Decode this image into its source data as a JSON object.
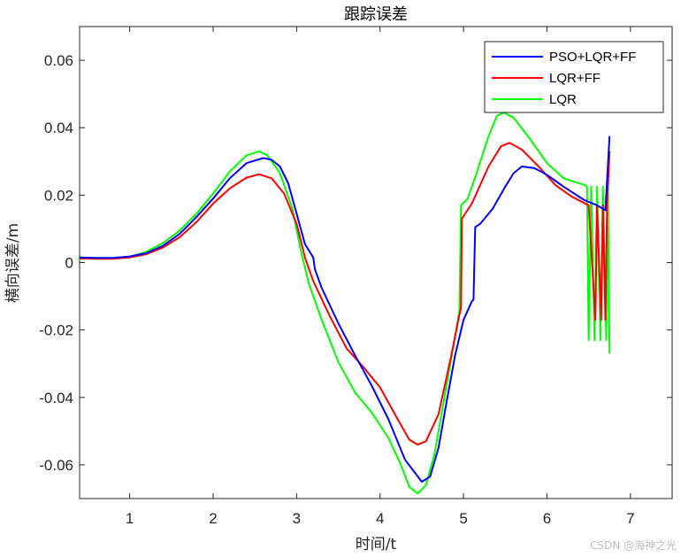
{
  "chart_data": {
    "type": "line",
    "title": "跟踪误差",
    "xlabel": "时间/t",
    "ylabel": "横向误差/m",
    "xlim": [
      0.4,
      7.5
    ],
    "ylim": [
      -0.07,
      0.07
    ],
    "xticks": [
      1,
      2,
      3,
      4,
      5,
      6,
      7
    ],
    "xtick_labels": [
      "1",
      "2",
      "3",
      "4",
      "5",
      "6",
      "7"
    ],
    "yticks": [
      -0.06,
      -0.04,
      -0.02,
      0,
      0.02,
      0.04,
      0.06
    ],
    "ytick_labels": [
      "-0.06",
      "-0.04",
      "-0.02",
      "0",
      "0.02",
      "0.04",
      "0.06"
    ],
    "grid": false,
    "legend_position": "top-right",
    "series": [
      {
        "name": "PSO+LQR+FF",
        "color": "#0000ff",
        "points": [
          [
            0.4,
            0.0015
          ],
          [
            0.6,
            0.0014
          ],
          [
            0.8,
            0.0014
          ],
          [
            1.0,
            0.0018
          ],
          [
            1.2,
            0.0028
          ],
          [
            1.4,
            0.005
          ],
          [
            1.6,
            0.0085
          ],
          [
            1.8,
            0.0135
          ],
          [
            2.0,
            0.019
          ],
          [
            2.2,
            0.025
          ],
          [
            2.4,
            0.0295
          ],
          [
            2.6,
            0.031
          ],
          [
            2.7,
            0.0305
          ],
          [
            2.8,
            0.0285
          ],
          [
            2.9,
            0.0235
          ],
          [
            3.0,
            0.0145
          ],
          [
            3.1,
            0.0055
          ],
          [
            3.2,
            0.0015
          ],
          [
            3.22,
            -0.002
          ],
          [
            3.3,
            -0.0075
          ],
          [
            3.5,
            -0.018
          ],
          [
            3.7,
            -0.0275
          ],
          [
            3.9,
            -0.0365
          ],
          [
            4.1,
            -0.0465
          ],
          [
            4.3,
            -0.0585
          ],
          [
            4.5,
            -0.065
          ],
          [
            4.6,
            -0.0635
          ],
          [
            4.7,
            -0.055
          ],
          [
            4.8,
            -0.041
          ],
          [
            4.9,
            -0.0275
          ],
          [
            5.0,
            -0.017
          ],
          [
            5.1,
            -0.0115
          ],
          [
            5.12,
            -0.011
          ],
          [
            5.14,
            0.0105
          ],
          [
            5.2,
            0.0115
          ],
          [
            5.35,
            0.016
          ],
          [
            5.5,
            0.0225
          ],
          [
            5.6,
            0.0265
          ],
          [
            5.7,
            0.0285
          ],
          [
            5.85,
            0.028
          ],
          [
            6.0,
            0.026
          ],
          [
            6.2,
            0.0225
          ],
          [
            6.45,
            0.0185
          ],
          [
            6.6,
            0.017
          ],
          [
            6.7,
            0.0155
          ],
          [
            6.75,
            0.0375
          ]
        ]
      },
      {
        "name": "LQR+FF",
        "color": "#ff0000",
        "points": [
          [
            0.4,
            0.0012
          ],
          [
            0.6,
            0.0011
          ],
          [
            0.8,
            0.0011
          ],
          [
            1.0,
            0.0015
          ],
          [
            1.2,
            0.0025
          ],
          [
            1.4,
            0.0045
          ],
          [
            1.6,
            0.0075
          ],
          [
            1.8,
            0.012
          ],
          [
            2.0,
            0.0175
          ],
          [
            2.2,
            0.022
          ],
          [
            2.4,
            0.0252
          ],
          [
            2.55,
            0.0262
          ],
          [
            2.7,
            0.025
          ],
          [
            2.85,
            0.0205
          ],
          [
            3.0,
            0.0115
          ],
          [
            3.1,
            0.0015
          ],
          [
            3.2,
            -0.0055
          ],
          [
            3.4,
            -0.016
          ],
          [
            3.6,
            -0.0255
          ],
          [
            3.8,
            -0.031
          ],
          [
            4.0,
            -0.037
          ],
          [
            4.2,
            -0.046
          ],
          [
            4.35,
            -0.0525
          ],
          [
            4.45,
            -0.054
          ],
          [
            4.55,
            -0.053
          ],
          [
            4.7,
            -0.045
          ],
          [
            4.85,
            -0.028
          ],
          [
            4.95,
            -0.0155
          ],
          [
            4.97,
            -0.0135
          ],
          [
            4.98,
            0.013
          ],
          [
            5.1,
            0.0175
          ],
          [
            5.3,
            0.0285
          ],
          [
            5.45,
            0.0345
          ],
          [
            5.55,
            0.0355
          ],
          [
            5.7,
            0.0335
          ],
          [
            5.9,
            0.0285
          ],
          [
            6.1,
            0.023
          ],
          [
            6.3,
            0.0195
          ],
          [
            6.5,
            0.017
          ],
          [
            6.58,
            -0.017
          ],
          [
            6.6,
            0.017
          ],
          [
            6.65,
            -0.017
          ],
          [
            6.67,
            0.017
          ],
          [
            6.7,
            -0.017
          ],
          [
            6.72,
            0.017
          ],
          [
            6.75,
            0.033
          ]
        ]
      },
      {
        "name": "LQR",
        "color": "#00ff00",
        "points": [
          [
            0.4,
            0.0012
          ],
          [
            0.6,
            0.0011
          ],
          [
            0.8,
            0.0012
          ],
          [
            1.0,
            0.0017
          ],
          [
            1.2,
            0.0032
          ],
          [
            1.4,
            0.0058
          ],
          [
            1.6,
            0.0095
          ],
          [
            1.8,
            0.0145
          ],
          [
            2.0,
            0.0205
          ],
          [
            2.2,
            0.027
          ],
          [
            2.4,
            0.0318
          ],
          [
            2.55,
            0.033
          ],
          [
            2.65,
            0.0318
          ],
          [
            2.8,
            0.0265
          ],
          [
            2.95,
            0.016
          ],
          [
            3.05,
            0.0035
          ],
          [
            3.15,
            -0.0065
          ],
          [
            3.3,
            -0.017
          ],
          [
            3.5,
            -0.0295
          ],
          [
            3.7,
            -0.0385
          ],
          [
            3.9,
            -0.0445
          ],
          [
            4.1,
            -0.052
          ],
          [
            4.25,
            -0.06
          ],
          [
            4.35,
            -0.0665
          ],
          [
            4.45,
            -0.0685
          ],
          [
            4.55,
            -0.066
          ],
          [
            4.65,
            -0.057
          ],
          [
            4.8,
            -0.036
          ],
          [
            4.95,
            -0.0145
          ],
          [
            4.97,
            0.017
          ],
          [
            5.05,
            0.019
          ],
          [
            5.15,
            0.026
          ],
          [
            5.3,
            0.0375
          ],
          [
            5.4,
            0.0435
          ],
          [
            5.48,
            0.0445
          ],
          [
            5.6,
            0.043
          ],
          [
            5.8,
            0.0365
          ],
          [
            6.0,
            0.0295
          ],
          [
            6.2,
            0.025
          ],
          [
            6.45,
            0.023
          ],
          [
            6.48,
            0.0225
          ],
          [
            6.5,
            -0.023
          ],
          [
            6.53,
            0.0225
          ],
          [
            6.57,
            -0.023
          ],
          [
            6.6,
            0.0225
          ],
          [
            6.64,
            -0.023
          ],
          [
            6.67,
            0.0225
          ],
          [
            6.71,
            -0.023
          ],
          [
            6.73,
            0.0225
          ],
          [
            6.75,
            -0.027
          ]
        ]
      }
    ]
  },
  "watermark": "CSDN @海神之光"
}
